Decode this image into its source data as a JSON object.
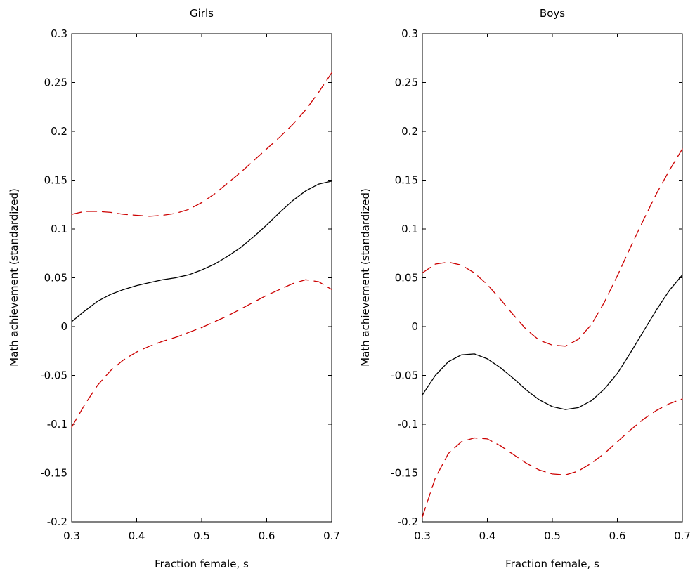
{
  "chart_data": [
    {
      "type": "line",
      "title": "Girls",
      "xlabel": "Fraction female, s",
      "ylabel": "Math achievement (standardized)",
      "xlim": [
        0.3,
        0.7
      ],
      "ylim": [
        -0.2,
        0.3
      ],
      "xticks": [
        "0.3",
        "0.4",
        "0.5",
        "0.6",
        "0.7"
      ],
      "yticks": [
        "-0.2",
        "-0.15",
        "-0.1",
        "-0.05",
        "0",
        "0.05",
        "0.1",
        "0.15",
        "0.2",
        "0.25",
        "0.3"
      ],
      "x": [
        0.3,
        0.32,
        0.34,
        0.36,
        0.38,
        0.4,
        0.42,
        0.44,
        0.46,
        0.48,
        0.5,
        0.52,
        0.54,
        0.56,
        0.58,
        0.6,
        0.62,
        0.64,
        0.66,
        0.68,
        0.7
      ],
      "series": [
        {
          "style": "solid",
          "color": "#000000",
          "values": [
            0.005,
            0.016,
            0.026,
            0.033,
            0.038,
            0.042,
            0.045,
            0.048,
            0.05,
            0.053,
            0.058,
            0.064,
            0.072,
            0.081,
            0.092,
            0.104,
            0.117,
            0.129,
            0.139,
            0.146,
            0.149
          ]
        },
        {
          "style": "dashed",
          "color": "#cc0000",
          "values": [
            0.115,
            0.118,
            0.118,
            0.117,
            0.115,
            0.114,
            0.113,
            0.114,
            0.116,
            0.12,
            0.127,
            0.136,
            0.147,
            0.158,
            0.17,
            0.182,
            0.194,
            0.207,
            0.222,
            0.24,
            0.26
          ]
        },
        {
          "style": "dashed",
          "color": "#cc0000",
          "values": [
            -0.103,
            -0.08,
            -0.06,
            -0.045,
            -0.034,
            -0.026,
            -0.02,
            -0.015,
            -0.011,
            -0.006,
            -0.001,
            0.005,
            0.011,
            0.018,
            0.025,
            0.032,
            0.038,
            0.044,
            0.048,
            0.046,
            0.038
          ]
        }
      ]
    },
    {
      "type": "line",
      "title": "Boys",
      "xlabel": "Fraction female, s",
      "ylabel": "Math achievement (standardized)",
      "xlim": [
        0.3,
        0.7
      ],
      "ylim": [
        -0.2,
        0.3
      ],
      "xticks": [
        "0.3",
        "0.4",
        "0.5",
        "0.6",
        "0.7"
      ],
      "yticks": [
        "-0.2",
        "-0.15",
        "-0.1",
        "-0.05",
        "0",
        "0.05",
        "0.1",
        "0.15",
        "0.2",
        "0.25",
        "0.3"
      ],
      "x": [
        0.3,
        0.32,
        0.34,
        0.36,
        0.38,
        0.4,
        0.42,
        0.44,
        0.46,
        0.48,
        0.5,
        0.52,
        0.54,
        0.56,
        0.58,
        0.6,
        0.62,
        0.64,
        0.66,
        0.68,
        0.7
      ],
      "series": [
        {
          "style": "solid",
          "color": "#000000",
          "values": [
            -0.07,
            -0.05,
            -0.036,
            -0.029,
            -0.028,
            -0.033,
            -0.042,
            -0.053,
            -0.065,
            -0.075,
            -0.082,
            -0.085,
            -0.083,
            -0.076,
            -0.064,
            -0.048,
            -0.027,
            -0.005,
            0.017,
            0.037,
            0.053
          ]
        },
        {
          "style": "dashed",
          "color": "#cc0000",
          "values": [
            0.055,
            0.064,
            0.066,
            0.063,
            0.055,
            0.043,
            0.028,
            0.012,
            -0.003,
            -0.014,
            -0.019,
            -0.02,
            -0.013,
            0.002,
            0.025,
            0.052,
            0.081,
            0.109,
            0.136,
            0.16,
            0.182
          ]
        },
        {
          "style": "dashed",
          "color": "#cc0000",
          "values": [
            -0.195,
            -0.155,
            -0.13,
            -0.118,
            -0.114,
            -0.115,
            -0.122,
            -0.131,
            -0.14,
            -0.147,
            -0.151,
            -0.152,
            -0.148,
            -0.14,
            -0.13,
            -0.118,
            -0.106,
            -0.095,
            -0.086,
            -0.079,
            -0.074
          ]
        }
      ]
    }
  ]
}
